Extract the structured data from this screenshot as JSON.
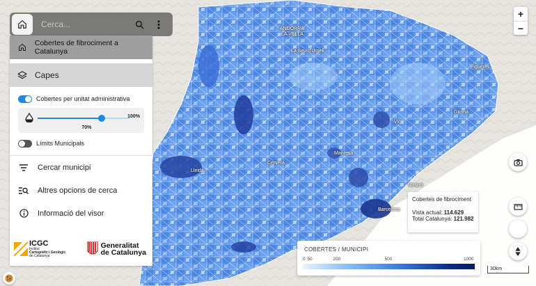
{
  "search": {
    "placeholder": "Cerca..."
  },
  "panel": {
    "title": "Cobertes de fibrociment a Catalunya",
    "layers_label": "Capes",
    "layer1": {
      "label": "Cobertes per unitat administrativa",
      "on": true
    },
    "opacity": {
      "value": 0.7,
      "label": "70%",
      "max_label": "100%"
    },
    "layer2": {
      "label": "Límits Municipals",
      "on": false
    },
    "menu": [
      {
        "label": "Cercar municipi",
        "icon": "filter-lines-icon"
      },
      {
        "label": "Altres opcions de cerca",
        "icon": "advanced-search-icon"
      },
      {
        "label": "Informació del visor",
        "icon": "info-icon"
      }
    ],
    "logos": {
      "icgc_main": "ICGC",
      "icgc_sub1": "Institut",
      "icgc_sub2": "Cartogràfic i Geològic",
      "icgc_sub3": "de Catalunya",
      "gen1": "Generalitat",
      "gen2": "de Catalunya"
    }
  },
  "map_labels": [
    {
      "text": "ANDORRA",
      "pos": "andorra"
    },
    {
      "text": "LA VELLA",
      "pos": "andorra2"
    },
    {
      "text": "La Seu d'Urgell",
      "pos": "seu"
    },
    {
      "text": "Figueres",
      "pos": "figueres"
    },
    {
      "text": "Girona",
      "pos": "girona"
    },
    {
      "text": "Vic",
      "pos": "vic"
    },
    {
      "text": "Manresa",
      "pos": "manresa"
    },
    {
      "text": "Cervera",
      "pos": "cervera"
    },
    {
      "text": "Lleida",
      "pos": "lleida"
    },
    {
      "text": "Mataró",
      "pos": "mataro"
    },
    {
      "text": "Barcelona",
      "pos": "barcelona"
    }
  ],
  "info": {
    "title": "Cobertes de fibrociment",
    "current_label": "Vista actual:",
    "current_value": "114.629",
    "total_label": "Total Catalunya:",
    "total_value": "121.982"
  },
  "legend": {
    "title": "COBERTES / MUNICIPI",
    "ticks": [
      "0",
      "50",
      "200",
      "500",
      "1000"
    ],
    "tick_values": [
      0,
      50,
      200,
      500,
      1000
    ],
    "max": 1000
  },
  "scale": "30km",
  "colors": {
    "accent": "#1e88e5",
    "choropleth_dark": "#0d2a8a",
    "choropleth_light": "#e8f3ff"
  }
}
